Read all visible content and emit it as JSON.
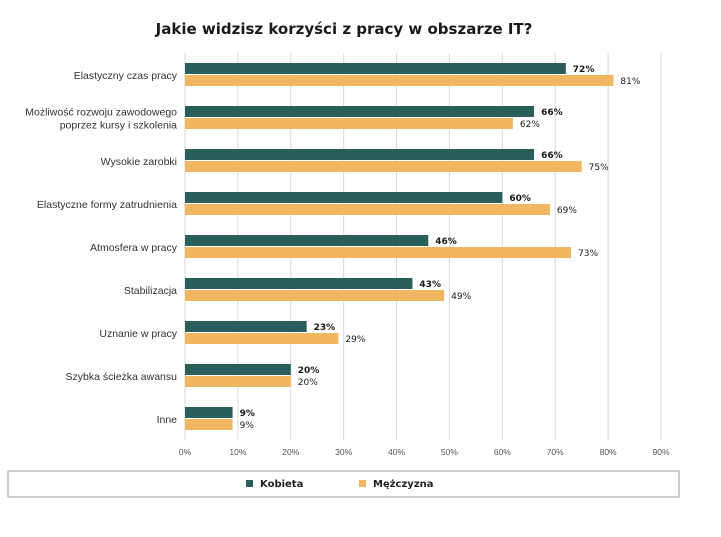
{
  "chart_data": {
    "type": "bar",
    "orientation": "horizontal",
    "title": "Jakie widzisz korzyści z pracy w obszarze IT?",
    "categories": [
      [
        "Elastyczny czas pracy"
      ],
      [
        "Możliwość rozwoju zawodowego",
        "poprzez kursy i szkolenia"
      ],
      [
        "Wysokie zarobki"
      ],
      [
        "Elastyczne formy zatrudnienia"
      ],
      [
        "Atmosfera w pracy"
      ],
      [
        "Stabilizacja"
      ],
      [
        "Uznanie w pracy"
      ],
      [
        "Szybka ścieżka awansu"
      ],
      [
        "Inne"
      ]
    ],
    "series": [
      {
        "name": "Kobieta",
        "color": "#2a5e5a",
        "values": [
          72,
          66,
          66,
          60,
          46,
          43,
          23,
          20,
          9
        ],
        "labels": [
          "72%",
          "66%",
          "66%",
          "60%",
          "46%",
          "43%",
          "23%",
          "20%",
          "9%"
        ]
      },
      {
        "name": "Mężczyzna",
        "color": "#f0b660",
        "values": [
          81,
          62,
          75,
          69,
          73,
          49,
          29,
          20,
          9
        ],
        "labels": [
          "81%",
          "62%",
          "75%",
          "69%",
          "73%",
          "49%",
          "29%",
          "20%",
          "9%"
        ]
      }
    ],
    "xlim": [
      0,
      90
    ],
    "xticks": [
      "0%",
      "10%",
      "20%",
      "30%",
      "40%",
      "50%",
      "60%",
      "70%",
      "80%",
      "90%"
    ],
    "xlabel": "",
    "ylabel": "",
    "grid": true,
    "legend_position": "bottom"
  }
}
